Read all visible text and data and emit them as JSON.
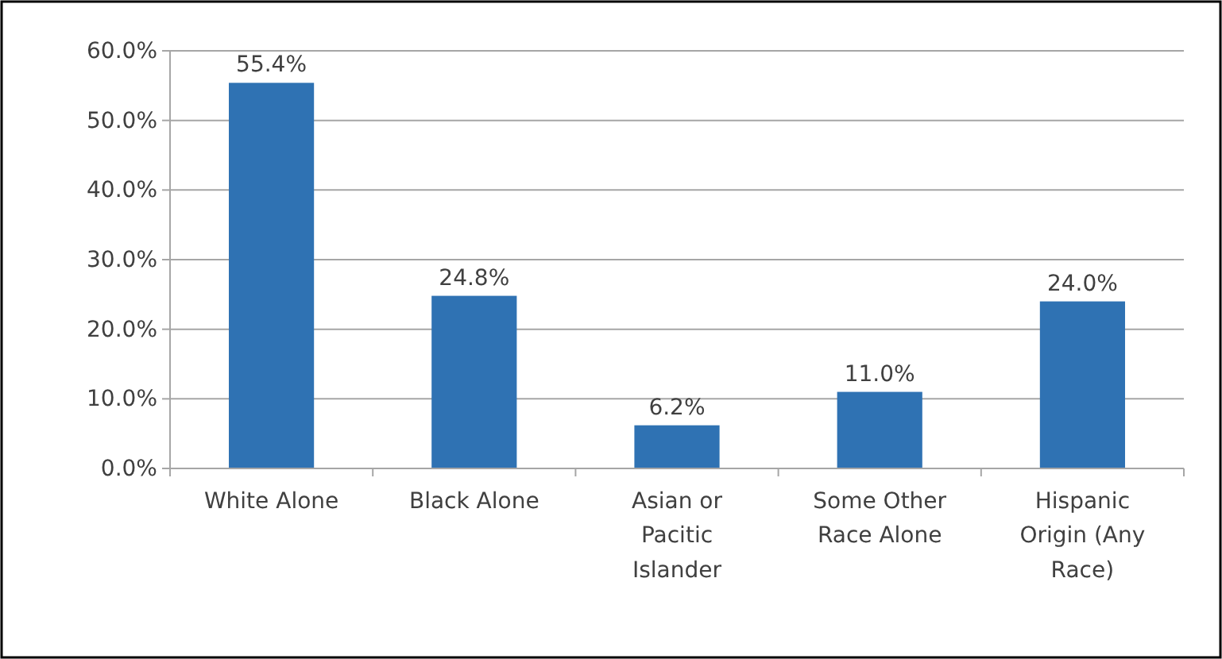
{
  "chart_data": {
    "type": "bar",
    "categories": [
      "White Alone",
      "Black Alone",
      "Asian or Pacitic Islander",
      "Some Other Race Alone",
      "Hispanic Origin (Any Race)"
    ],
    "values": [
      55.4,
      24.8,
      6.2,
      11.0,
      24.0
    ],
    "value_labels": [
      "55.4%",
      "24.8%",
      "6.2%",
      "11.0%",
      "24.0%"
    ],
    "color": "#2f72b3",
    "ylim": [
      0,
      60
    ],
    "yticks": [
      {
        "value": 0,
        "label": "0.0%"
      },
      {
        "value": 10,
        "label": "10.0%"
      },
      {
        "value": 20,
        "label": "20.0%"
      },
      {
        "value": 30,
        "label": "30.0%"
      },
      {
        "value": 40,
        "label": "40.0%"
      },
      {
        "value": 50,
        "label": "50.0%"
      },
      {
        "value": 60,
        "label": "60.0%"
      }
    ],
    "grid": "y"
  }
}
